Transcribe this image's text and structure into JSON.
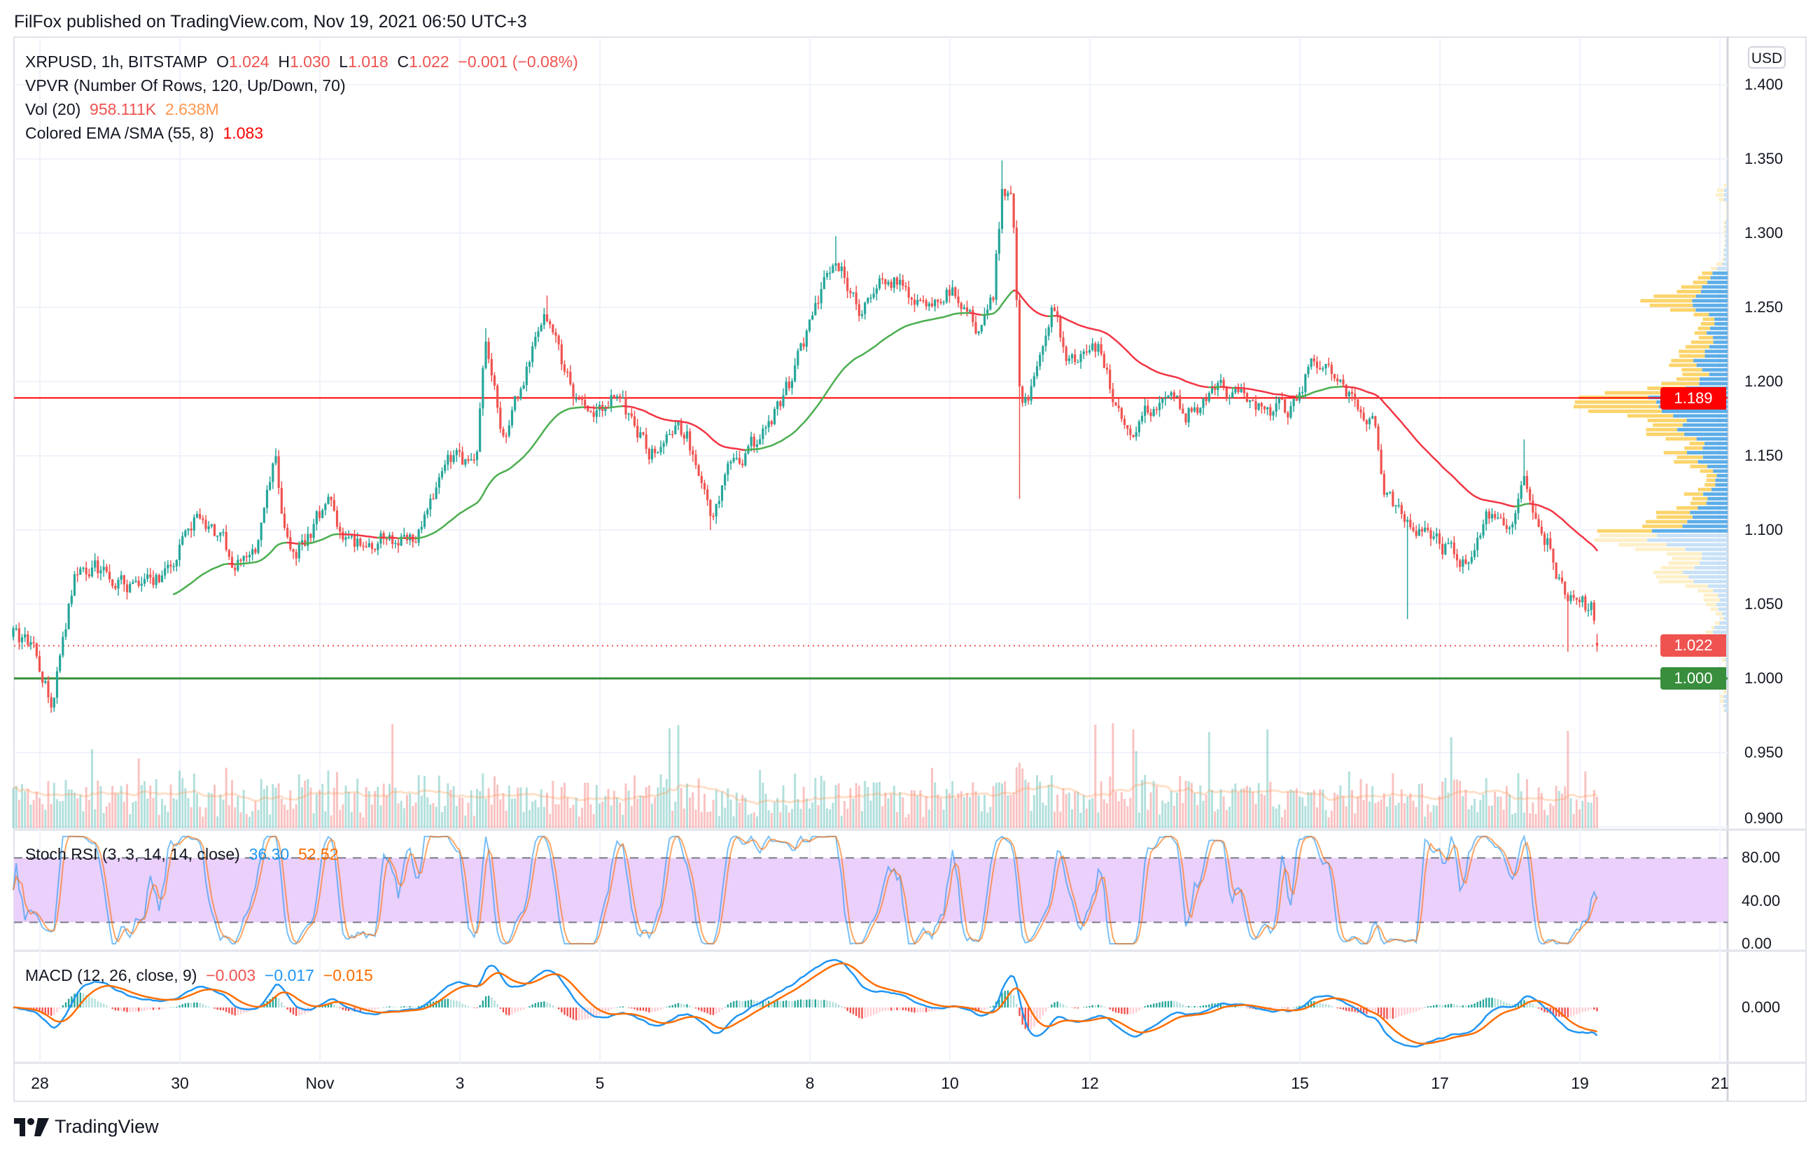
{
  "published": "FilFox published on TradingView.com, Nov 19, 2021 06:50 UTC+3",
  "legend": {
    "symbol": "XRPUSD, 1h, BITSTAMP",
    "o_label": "O",
    "open": "1.024",
    "h_label": "H",
    "high": "1.030",
    "l_label": "L",
    "low": "1.018",
    "c_label": "C",
    "close": "1.022",
    "change": "−0.001 (−0.08%)",
    "vpvr": "VPVR (Number Of Rows, 120, Up/Down, 70)",
    "vol_name": "Vol (20)",
    "vol_value": "958.111K",
    "vol_ma": "2.638M",
    "ema_name": "Colored EMA /SMA (55, 8)",
    "ema_value": "1.083"
  },
  "stoch": {
    "name": "Stoch RSI (3, 3, 14, 14, close)",
    "k": "36.30",
    "d": "52.52",
    "ticks": [
      "80.00",
      "40.00",
      "0.00"
    ]
  },
  "macd": {
    "name": "MACD (12, 26, close, 9)",
    "hist": "−0.003",
    "macd": "−0.017",
    "signal": "−0.015",
    "ticks": [
      "0.000"
    ]
  },
  "price_axis": {
    "currency": "USD",
    "ticks": [
      "1.400",
      "1.350",
      "1.300",
      "1.250",
      "1.200",
      "1.150",
      "1.100",
      "1.050",
      "1.000",
      "0.950",
      "0.900"
    ]
  },
  "tags": {
    "line_red": {
      "label": "1.189",
      "color": "#ff0000"
    },
    "current": {
      "label": "1.022",
      "color": "#ef5350"
    },
    "line_green": {
      "label": "1.000",
      "color": "#388e3c"
    }
  },
  "brand": "TradingView",
  "colors": {
    "up": "#26a69a",
    "down": "#ef5350",
    "vp_up": "#5dade8",
    "vp_down": "#fcd46b",
    "stoch_band": "#ead0fb"
  },
  "chart_data": {
    "type": "candlestick",
    "interval": "1h",
    "x_unit": "days since Oct 28",
    "x_ticks": [
      {
        "label": "28",
        "day": 0
      },
      {
        "label": "30",
        "day": 2
      },
      {
        "label": "Nov",
        "day": 4
      },
      {
        "label": "3",
        "day": 6
      },
      {
        "label": "5",
        "day": 8
      },
      {
        "label": "8",
        "day": 11
      },
      {
        "label": "10",
        "day": 13
      },
      {
        "label": "12",
        "day": 15
      },
      {
        "label": "15",
        "day": 18
      },
      {
        "label": "17",
        "day": 20
      },
      {
        "label": "19",
        "day": 22
      },
      {
        "label": "21",
        "day": 24
      }
    ],
    "ylim": [
      0.9,
      1.4
    ],
    "horizontal_lines": [
      1.189,
      1.0
    ],
    "current_price": 1.022,
    "last_candle": {
      "o": 1.024,
      "h": 1.03,
      "l": 1.018,
      "c": 1.022
    },
    "price_path": [
      [
        -0.38,
        1.028
      ],
      [
        -0.1,
        1.02
      ],
      [
        0.08,
        0.995
      ],
      [
        0.2,
        0.985
      ],
      [
        0.33,
        1.027
      ],
      [
        0.5,
        1.07
      ],
      [
        0.8,
        1.075
      ],
      [
        1.08,
        1.066
      ],
      [
        1.58,
        1.062
      ],
      [
        1.91,
        1.081
      ],
      [
        2.33,
        1.113
      ],
      [
        2.74,
        1.081
      ],
      [
        3.07,
        1.082
      ],
      [
        3.36,
        1.144
      ],
      [
        3.5,
        1.1
      ],
      [
        3.65,
        1.08
      ],
      [
        4.15,
        1.125
      ],
      [
        4.32,
        1.089
      ],
      [
        4.9,
        1.093
      ],
      [
        5.4,
        1.095
      ],
      [
        5.81,
        1.144
      ],
      [
        6.23,
        1.148
      ],
      [
        6.36,
        1.222
      ],
      [
        6.64,
        1.156
      ],
      [
        6.89,
        1.199
      ],
      [
        7.23,
        1.246
      ],
      [
        7.56,
        1.2
      ],
      [
        7.81,
        1.175
      ],
      [
        8.22,
        1.191
      ],
      [
        8.72,
        1.152
      ],
      [
        9.22,
        1.167
      ],
      [
        9.58,
        1.113
      ],
      [
        9.8,
        1.136
      ],
      [
        10.38,
        1.167
      ],
      [
        10.71,
        1.199
      ],
      [
        11.05,
        1.246
      ],
      [
        11.35,
        1.285
      ],
      [
        11.71,
        1.25
      ],
      [
        12.13,
        1.273
      ],
      [
        12.54,
        1.254
      ],
      [
        12.71,
        1.245
      ],
      [
        13.04,
        1.265
      ],
      [
        13.37,
        1.238
      ],
      [
        13.62,
        1.261
      ],
      [
        13.74,
        1.328
      ],
      [
        13.9,
        1.324
      ],
      [
        14.0,
        1.191
      ],
      [
        14.12,
        1.185
      ],
      [
        14.45,
        1.246
      ],
      [
        14.7,
        1.214
      ],
      [
        15.12,
        1.22
      ],
      [
        15.53,
        1.167
      ],
      [
        16.03,
        1.191
      ],
      [
        16.36,
        1.179
      ],
      [
        16.86,
        1.195
      ],
      [
        17.36,
        1.185
      ],
      [
        17.86,
        1.179
      ],
      [
        18.19,
        1.214
      ],
      [
        18.52,
        1.205
      ],
      [
        18.77,
        1.19
      ],
      [
        19.1,
        1.167
      ],
      [
        19.19,
        1.128
      ],
      [
        19.52,
        1.105
      ],
      [
        19.85,
        1.097
      ],
      [
        20.27,
        1.081
      ],
      [
        20.51,
        1.085
      ],
      [
        20.68,
        1.109
      ],
      [
        21.01,
        1.095
      ],
      [
        21.21,
        1.144
      ],
      [
        21.35,
        1.113
      ],
      [
        21.59,
        1.089
      ],
      [
        21.81,
        1.05
      ],
      [
        22.01,
        1.05
      ],
      [
        22.18,
        1.045
      ],
      [
        22.25,
        1.022
      ]
    ],
    "wick_extremes": [
      [
        0.2,
        "low",
        0.982
      ],
      [
        3.36,
        "high",
        1.155
      ],
      [
        6.36,
        "high",
        1.236
      ],
      [
        7.23,
        "high",
        1.258
      ],
      [
        9.58,
        "low",
        1.1
      ],
      [
        11.35,
        "high",
        1.298
      ],
      [
        13.74,
        "high",
        1.349
      ],
      [
        14.0,
        "low",
        1.121
      ],
      [
        19.52,
        "low",
        1.04
      ],
      [
        21.21,
        "high",
        1.161
      ],
      [
        21.81,
        "low",
        1.018
      ]
    ]
  }
}
